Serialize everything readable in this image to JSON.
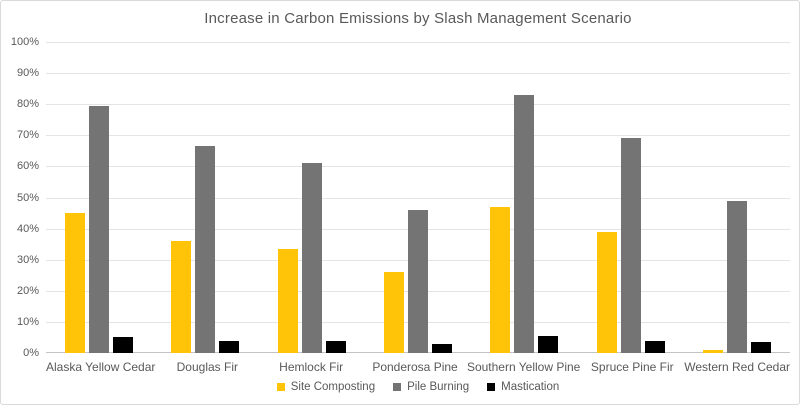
{
  "chart_data": {
    "type": "bar",
    "title": "Increase in Carbon Emissions by Slash Management Scenario",
    "categories": [
      "Alaska Yellow Cedar",
      "Douglas Fir",
      "Hemlock Fir",
      "Ponderosa Pine",
      "Southern Yellow Pine",
      "Spruce Pine Fir",
      "Western Red Cedar"
    ],
    "series": [
      {
        "name": "Site Composting",
        "color": "#FFC408",
        "values": [
          45,
          36,
          33.5,
          26,
          47,
          39,
          1
        ]
      },
      {
        "name": "Pile Burning",
        "color": "#747474",
        "values": [
          79.5,
          66.5,
          61,
          46,
          83,
          69,
          49
        ]
      },
      {
        "name": "Mastication",
        "color": "#000000",
        "values": [
          5,
          4,
          4,
          3,
          5.5,
          4,
          3.5
        ]
      }
    ],
    "xlabel": "",
    "ylabel": "",
    "ylim": [
      0,
      100
    ],
    "ytick_step": 10,
    "ytick_labels": [
      "0%",
      "10%",
      "20%",
      "30%",
      "40%",
      "50%",
      "60%",
      "70%",
      "80%",
      "90%",
      "100%"
    ],
    "grid": true,
    "legend_position": "bottom"
  },
  "colors": {
    "title_text": "#595959",
    "axis_text": "#595959",
    "gridline": "#e4e4e4",
    "axis_line": "#c4c4c4",
    "chart_border": "#d9d9d9",
    "background": "#ffffff"
  }
}
